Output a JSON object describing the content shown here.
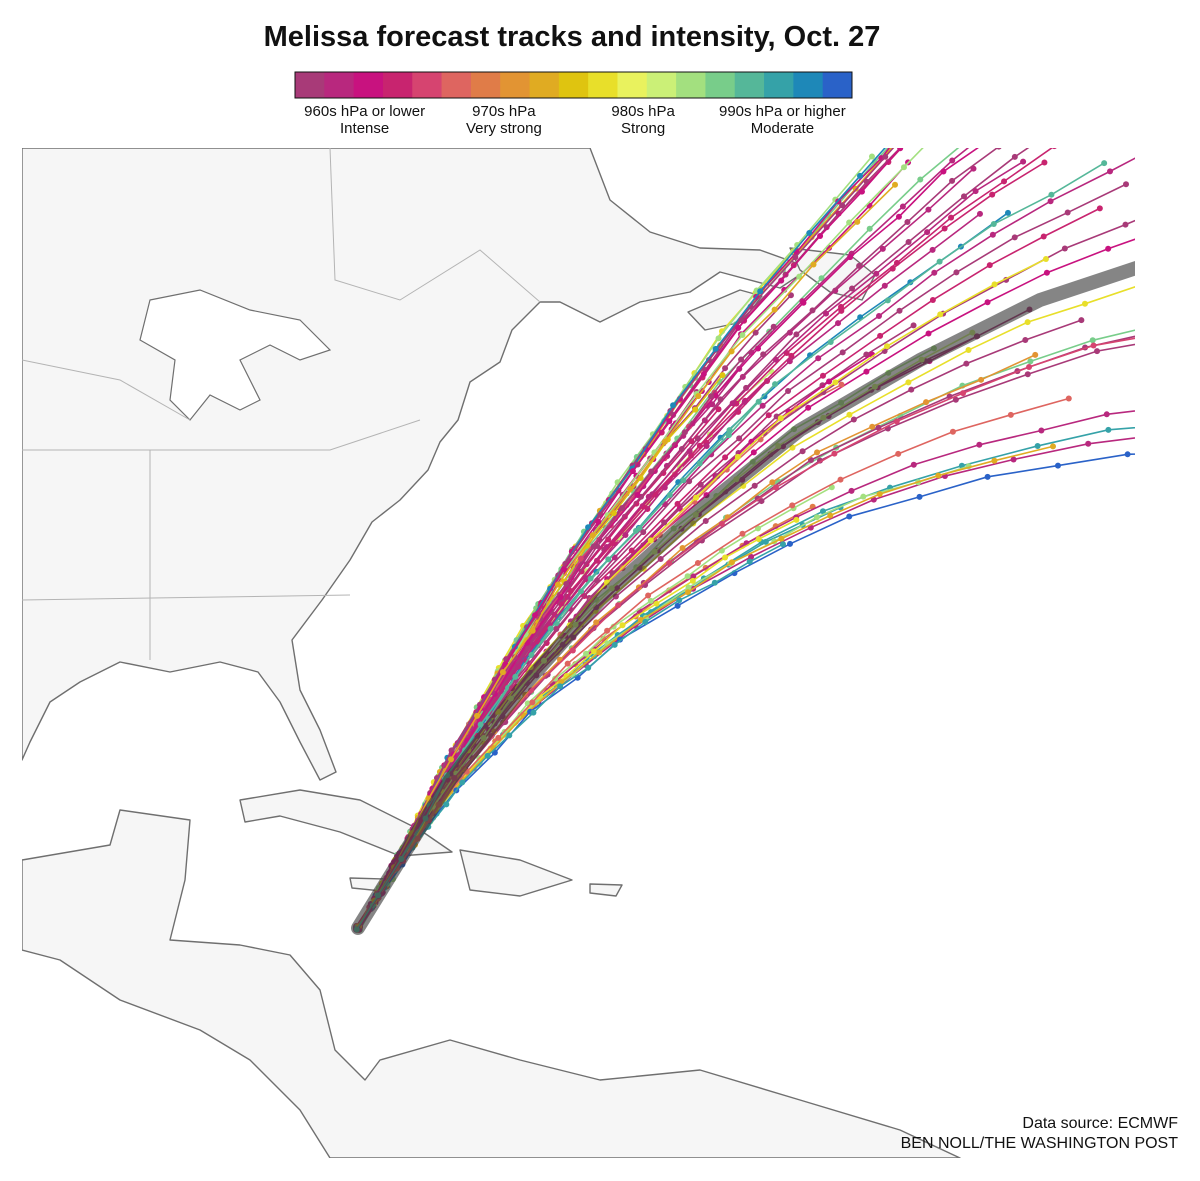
{
  "title": "Melissa forecast tracks and intensity, Oct. 27",
  "legend": {
    "colors": [
      "#a83a78",
      "#b8287e",
      "#c8127f",
      "#c8246f",
      "#d64470",
      "#de6560",
      "#e07c48",
      "#e29433",
      "#e0ab22",
      "#dfc410",
      "#e8df2a",
      "#e9f25e",
      "#cbf077",
      "#a3e07f",
      "#78cd8a",
      "#55b799",
      "#35a2a8",
      "#1e88b8",
      "#2a62c8"
    ],
    "labels": [
      {
        "pressure": "960s hPa or lower",
        "intensity": "Intense"
      },
      {
        "pressure": "970s hPa",
        "intensity": "Very strong"
      },
      {
        "pressure": "980s hPa",
        "intensity": "Strong"
      },
      {
        "pressure": "990s hPa or higher",
        "intensity": "Moderate"
      }
    ]
  },
  "credits": {
    "source": "Data source: ECMWF",
    "byline": "BEN NOLL/THE WASHINGTON POST"
  }
}
